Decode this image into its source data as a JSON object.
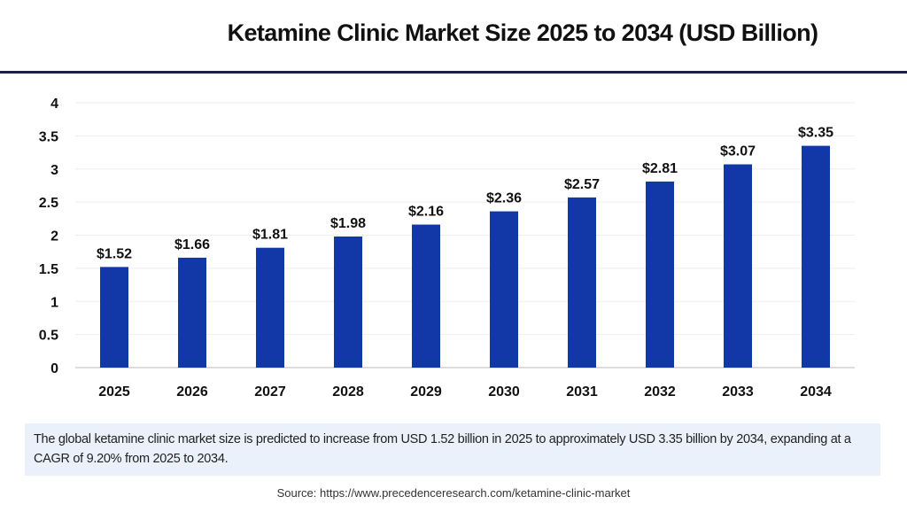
{
  "chart_data": {
    "type": "bar",
    "title": "Ketamine Clinic Market Size 2025 to 2034 (USD Billion)",
    "categories": [
      "2025",
      "2026",
      "2027",
      "2028",
      "2029",
      "2030",
      "2031",
      "2032",
      "2033",
      "2034"
    ],
    "values": [
      1.52,
      1.66,
      1.81,
      1.98,
      2.16,
      2.36,
      2.57,
      2.81,
      3.07,
      3.35
    ],
    "data_labels": [
      "$1.52",
      "$1.66",
      "$1.81",
      "$1.98",
      "$2.16",
      "$2.36",
      "$2.57",
      "$2.81",
      "$3.07",
      "$3.35"
    ],
    "yticks": [
      "0",
      "0.5",
      "1",
      "1.5",
      "2",
      "2.5",
      "3",
      "3.5",
      "4"
    ],
    "ylim": [
      0,
      4
    ],
    "xlabel": "",
    "ylabel": "",
    "grid": true,
    "bar_color": "#1238a8"
  },
  "note": "The global ketamine clinic market size is predicted to increase from USD 1.52 billion in 2025 to approximately USD 3.35 billion by 2034, expanding at a CAGR of 9.20% from 2025 to 2034.",
  "source": "Source: https://www.precedenceresearch.com/ketamine-clinic-market"
}
